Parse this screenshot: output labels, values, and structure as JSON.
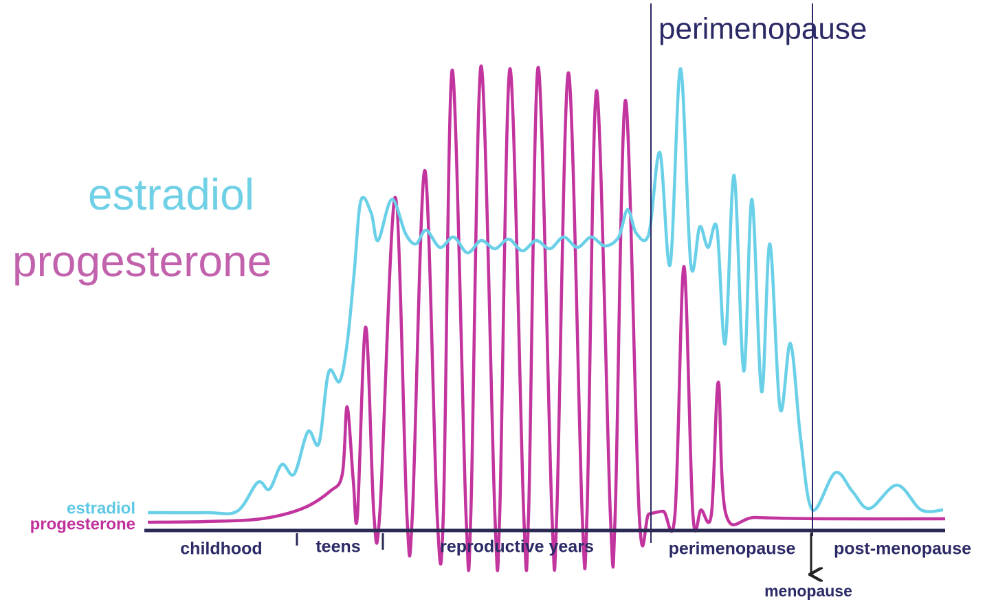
{
  "header": {
    "title": "perimenopause"
  },
  "labels": {
    "estradiol": "estradiol",
    "progesterone": "progesterone"
  },
  "legend": {
    "estradiol": "estradiol",
    "progesterone": "progesterone"
  },
  "axis": {
    "stages": [
      "childhood",
      "teens",
      "reproductive years",
      "perimenopause",
      "post-menopause"
    ],
    "event": "menopause"
  }
}
